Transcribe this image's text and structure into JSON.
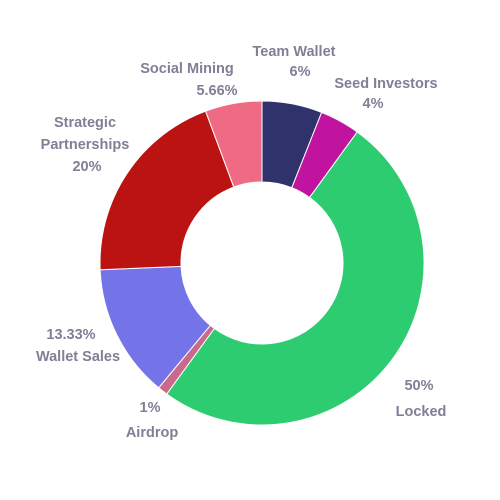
{
  "chart_data": {
    "type": "pie",
    "variant": "donut",
    "title": "",
    "slices": [
      {
        "name": "Team Wallet",
        "value": 6,
        "pct_label": "6%",
        "color": "#30336b"
      },
      {
        "name": "Seed Investors",
        "value": 4,
        "pct_label": "4%",
        "color": "#c0139f"
      },
      {
        "name": "Locked",
        "value": 50,
        "pct_label": "50%",
        "color": "#2ecc71"
      },
      {
        "name": "Airdrop",
        "value": 1,
        "pct_label": "1%",
        "color": "#c96a8c"
      },
      {
        "name": "Wallet Sales",
        "value": 13.33,
        "pct_label": "13.33%",
        "color": "#7474e8"
      },
      {
        "name": "Strategic Partnerships",
        "value": 20,
        "pct_label": "20%",
        "color": "#bb1212"
      },
      {
        "name": "Social Mining",
        "value": 5.66,
        "pct_label": "5.66%",
        "color": "#ee6a85"
      }
    ],
    "legend": "none",
    "label_color": "#7f7f96"
  }
}
